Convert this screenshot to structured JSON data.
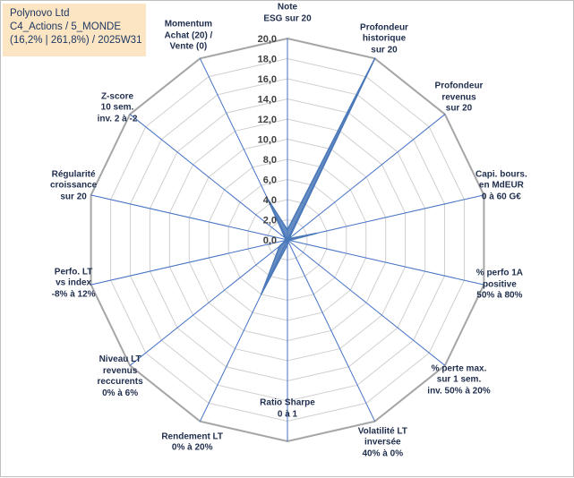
{
  "title": {
    "line1": "Polynovo Ltd",
    "line2": "C4_Actions / 5_MONDE",
    "line3": "(16,2% | 261,8%) / 2025W31"
  },
  "colors": {
    "grid": "#d0d0d0",
    "outer_ring": "#a6a6a6",
    "spoke": "#4472c4",
    "fill": "#4a78b8",
    "title_bg": "#fbe5c2"
  },
  "chart_data": {
    "type": "radar",
    "r_range": [
      0,
      20
    ],
    "r_ticks": [
      "0,0",
      "2,0",
      "4,0",
      "6,0",
      "8,0",
      "10,0",
      "12,0",
      "14,0",
      "16,0",
      "18,0",
      "20,0"
    ],
    "grid": true,
    "legend": "none",
    "axes": [
      [
        "Note",
        "ESG sur 20"
      ],
      [
        "Profondeur",
        "historique",
        "sur 20"
      ],
      [
        "Profondeur",
        "revenus",
        "sur 20"
      ],
      [
        "Capi. bours.",
        "en MdEUR",
        "0 à 60 G€"
      ],
      [
        "% perfo 1A",
        "positive",
        "50% à 80%"
      ],
      [
        "% perte max.",
        "sur 1 sem.",
        "inv. 50% à 20%"
      ],
      [
        "Volatilité LT",
        "inversée",
        "40% à 0%"
      ],
      [
        "Ratio Sharpe",
        "0 à 1"
      ],
      [
        "Rendement LT",
        "0% à 20%"
      ],
      [
        "Niveau LT",
        "revenus",
        "reccurents",
        "0% à 6%"
      ],
      [
        "Perfo. LT",
        "vs index",
        "-8% à 12%"
      ],
      [
        "Régularité",
        "croissance",
        "sur 20"
      ],
      [
        "Z-score",
        "10 sem.",
        "inv. 2 à -2"
      ],
      [
        "Momentum",
        "Achat (20) /",
        "Vente (0)"
      ]
    ],
    "values": [
      1.0,
      20.0,
      0.2,
      3.0,
      0.2,
      0.2,
      0.2,
      0.5,
      6.0,
      1.0,
      0.2,
      0.2,
      0.3,
      4.5
    ]
  }
}
